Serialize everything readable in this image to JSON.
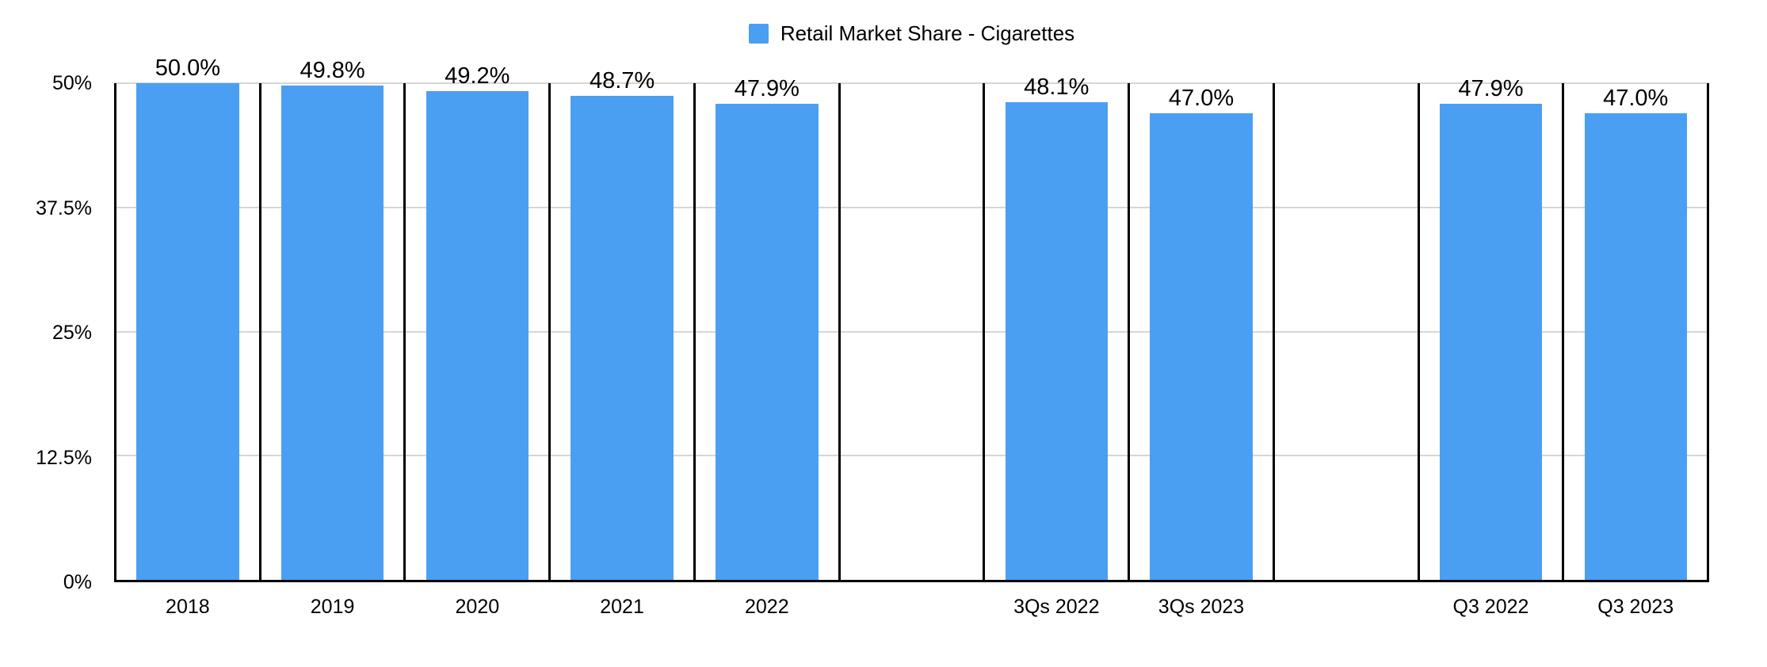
{
  "chart_data": {
    "type": "bar",
    "title": "Retail Market Share - Cigarettes",
    "legend_position": "top-center",
    "grid": true,
    "xlabel": "",
    "ylabel": "",
    "ylim": [
      0,
      50
    ],
    "categories": [
      "2018",
      "2019",
      "2020",
      "2021",
      "2022",
      "3Qs 2022",
      "3Qs 2023",
      "Q3 2022",
      "Q3 2023"
    ],
    "values": [
      50.0,
      49.8,
      49.2,
      48.7,
      47.9,
      48.1,
      47.0,
      47.9,
      47.0
    ],
    "value_labels": [
      "50.0%",
      "49.8%",
      "49.2%",
      "48.7%",
      "47.9%",
      "48.1%",
      "47.0%",
      "47.9%",
      "47.0%"
    ],
    "y_ticks": [
      {
        "label": "50%",
        "value": 50
      },
      {
        "label": "37.5%",
        "value": 37.5
      },
      {
        "label": "25%",
        "value": 25
      },
      {
        "label": "12.5%",
        "value": 12.5
      },
      {
        "label": "0%",
        "value": 0
      }
    ],
    "slots": [
      {
        "category": "2018",
        "value": 50.0,
        "label": "50.0%"
      },
      {
        "category": "2019",
        "value": 49.8,
        "label": "49.8%"
      },
      {
        "category": "2020",
        "value": 49.2,
        "label": "49.2%"
      },
      {
        "category": "2021",
        "value": 48.7,
        "label": "48.7%"
      },
      {
        "category": "2022",
        "value": 47.9,
        "label": "47.9%"
      },
      {
        "category": "",
        "value": null,
        "label": ""
      },
      {
        "category": "3Qs 2022",
        "value": 48.1,
        "label": "48.1%"
      },
      {
        "category": "3Qs 2023",
        "value": 47.0,
        "label": "47.0%"
      },
      {
        "category": "",
        "value": null,
        "label": ""
      },
      {
        "category": "Q3 2022",
        "value": 47.9,
        "label": "47.9%"
      },
      {
        "category": "Q3 2023",
        "value": 47.0,
        "label": "47.0%"
      }
    ],
    "colors": {
      "bar": "#4A9FF3",
      "axis": "#000000",
      "gridline": "#d6d6d6",
      "text": "#000000",
      "background": "#ffffff"
    }
  }
}
